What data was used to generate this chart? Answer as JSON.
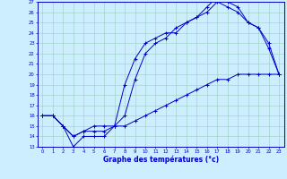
{
  "xlabel": "Graphe des températures (°c)",
  "xlim": [
    -0.5,
    23.5
  ],
  "ylim": [
    13,
    27
  ],
  "yticks": [
    13,
    14,
    15,
    16,
    17,
    18,
    19,
    20,
    21,
    22,
    23,
    24,
    25,
    26,
    27
  ],
  "xticks": [
    0,
    1,
    2,
    3,
    4,
    5,
    6,
    7,
    8,
    9,
    10,
    11,
    12,
    13,
    14,
    15,
    16,
    17,
    18,
    19,
    20,
    21,
    22,
    23
  ],
  "line_color": "#0000cc",
  "bg_color": "#cceeff",
  "grid_color": "#99ccbb",
  "line1_x": [
    0,
    1,
    2,
    3,
    4,
    5,
    6,
    7,
    8,
    9,
    10,
    11,
    12,
    13,
    14,
    15,
    16,
    17,
    18,
    19,
    20,
    21,
    22,
    23
  ],
  "line1_y": [
    16.0,
    16.0,
    15.0,
    14.0,
    14.5,
    14.5,
    14.5,
    15.0,
    19.0,
    21.5,
    23.0,
    23.5,
    24.0,
    24.0,
    25.0,
    25.5,
    26.0,
    27.0,
    26.5,
    26.0,
    25.0,
    24.5,
    23.0,
    20.0
  ],
  "line2_x": [
    0,
    1,
    2,
    3,
    4,
    5,
    6,
    7,
    8,
    9,
    10,
    11,
    12,
    13,
    14,
    15,
    16,
    17,
    18,
    19,
    20,
    21,
    22,
    23
  ],
  "line2_y": [
    16.0,
    16.0,
    15.0,
    13.0,
    14.0,
    14.0,
    14.0,
    15.0,
    16.0,
    19.5,
    22.0,
    23.0,
    23.5,
    24.5,
    25.0,
    25.5,
    26.5,
    27.5,
    27.0,
    26.5,
    25.0,
    24.5,
    22.5,
    20.0
  ],
  "line3_x": [
    0,
    1,
    2,
    3,
    4,
    5,
    6,
    7,
    8,
    9,
    10,
    11,
    12,
    13,
    14,
    15,
    16,
    17,
    18,
    19,
    20,
    21,
    22,
    23
  ],
  "line3_y": [
    16.0,
    16.0,
    15.0,
    14.0,
    14.5,
    15.0,
    15.0,
    15.0,
    15.0,
    15.5,
    16.0,
    16.5,
    17.0,
    17.5,
    18.0,
    18.5,
    19.0,
    19.5,
    19.5,
    20.0,
    20.0,
    20.0,
    20.0,
    20.0
  ]
}
